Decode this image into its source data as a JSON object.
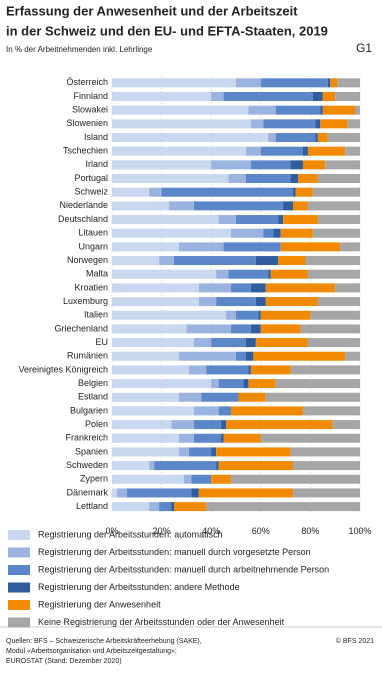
{
  "chart_data": {
    "type": "bar",
    "orientation": "horizontal",
    "stacked": true,
    "title": [
      "Erfassung der Anwesenheit und der Arbeitszeit",
      "in der Schweiz und den EU- und EFTA-Staaten, 2019"
    ],
    "subtitle": "In % der Arbeitnehmenden inkl. Lehrlinge",
    "panel_label": "G1",
    "categories": [
      "Österreich",
      "Finnland",
      "Slowakei",
      "Slowenien",
      "Island",
      "Tschechien",
      "Irland",
      "Portugal",
      "Schweiz",
      "Niederlande",
      "Deutschland",
      "Litauen",
      "Ungarn",
      "Norwegen",
      "Malta",
      "Kroatien",
      "Luxemburg",
      "Italien",
      "Griechenland",
      "EU",
      "Rumänien",
      "Vereinigtes Königreich",
      "Belgien",
      "Estland",
      "Bulgarien",
      "Polen",
      "Frankreich",
      "Spanien",
      "Schweden",
      "Zypern",
      "Dänemark",
      "Lettland"
    ],
    "series": [
      {
        "name": "Registrierung der Arbeitsstunden: automatisch",
        "color": "#c9d7ef",
        "values": [
          50,
          40,
          55,
          56,
          63,
          54,
          40,
          47,
          15,
          23,
          43,
          48,
          27,
          19,
          42,
          35,
          35,
          46,
          30,
          33,
          27,
          31,
          40,
          27,
          33,
          24,
          27,
          27,
          15,
          29,
          2,
          15
        ]
      },
      {
        "name": "Registrierung der Arbeitsstunden: manuell durch vorgesetzte Person",
        "color": "#9bb3df",
        "values": [
          10,
          5,
          11,
          5,
          3,
          6,
          16,
          7,
          5,
          10,
          7,
          13,
          18,
          6,
          5,
          13,
          7,
          4,
          18,
          7,
          23,
          7,
          3,
          9,
          10,
          9,
          6,
          4,
          2,
          3,
          4,
          4
        ]
      },
      {
        "name": "Registrierung der Arbeitsstunden: manuell durch arbeitnehmende Person",
        "color": "#5b86c8",
        "values": [
          27,
          36,
          18,
          21,
          16,
          17,
          16,
          18,
          53,
          36,
          17,
          4,
          23,
          33,
          16,
          8,
          16,
          9,
          8,
          14,
          4,
          17,
          10,
          15,
          5,
          11,
          11,
          9,
          25,
          8,
          26,
          5
        ]
      },
      {
        "name": "Registrierung der Arbeitsstunden: andere Methode",
        "color": "#2f5d9e",
        "values": [
          1,
          4,
          1,
          2,
          1,
          2,
          5,
          3,
          1,
          4,
          2,
          3,
          0,
          9,
          1,
          6,
          4,
          1,
          4,
          4,
          3,
          1,
          2,
          0,
          0,
          2,
          1,
          2,
          1,
          0,
          3,
          1
        ]
      },
      {
        "name": "Registrierung der Anwesenheit",
        "color": "#f28a00",
        "values": [
          3,
          5,
          13,
          11,
          4,
          15,
          9,
          8,
          7,
          6,
          14,
          13,
          24,
          11,
          15,
          28,
          21,
          20,
          16,
          21,
          37,
          16,
          11,
          11,
          29,
          43,
          15,
          30,
          30,
          8,
          38,
          13
        ]
      },
      {
        "name": "Keine Registrierung der Arbeitsstunden oder der Anwesenheit",
        "color": "#a6a6a6",
        "values": [
          9,
          10,
          2,
          5,
          13,
          6,
          14,
          17,
          19,
          21,
          17,
          19,
          8,
          22,
          21,
          10,
          17,
          20,
          24,
          21,
          6,
          28,
          34,
          38,
          23,
          11,
          40,
          28,
          27,
          52,
          27,
          62
        ]
      }
    ],
    "xlim": [
      0,
      100
    ],
    "xticks": [
      {
        "value": 0,
        "label": "0%"
      },
      {
        "value": 20,
        "label": "20%"
      },
      {
        "value": 40,
        "label": "40%"
      },
      {
        "value": 60,
        "label": "60%"
      },
      {
        "value": 80,
        "label": "80%"
      },
      {
        "value": 100,
        "label": "100%"
      }
    ],
    "grid": true,
    "source": [
      "Quellen: BFS – Schweizerische Arbeitskräfteerhebung (SAKE),",
      "Modul «Arbeitsorganisation und Arbeitszeitgestaltung»;",
      "EUROSTAT (Stand: Dezember 2020)"
    ],
    "copyright": "© BFS 2021"
  }
}
